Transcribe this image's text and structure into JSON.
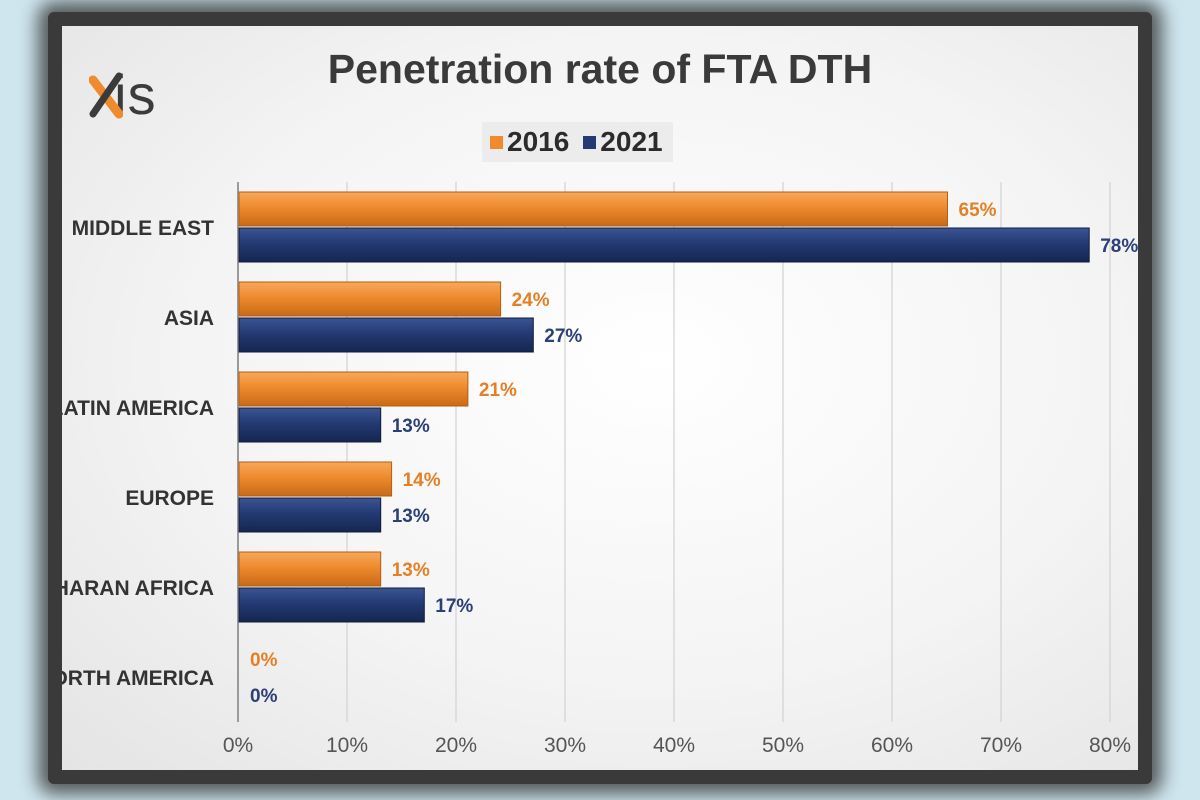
{
  "logo": {
    "text": "axis"
  },
  "chart_data": {
    "type": "bar",
    "orientation": "horizontal",
    "title": "Penetration rate of FTA DTH",
    "categories": [
      "MIDDLE EAST",
      "ASIA",
      "LATIN AMERICA",
      "EUROPE",
      "SUB-SAHARAN AFRICA",
      "NORTH AMERICA"
    ],
    "series": [
      {
        "name": "2016",
        "color": "#ef8a2e",
        "values": [
          65,
          24,
          21,
          14,
          13,
          0
        ],
        "labels": [
          "65%",
          "24%",
          "21%",
          "14%",
          "13%",
          "0%"
        ]
      },
      {
        "name": "2021",
        "color": "#233a73",
        "values": [
          78,
          27,
          13,
          13,
          17,
          0
        ],
        "labels": [
          "78%",
          "27%",
          "13%",
          "13%",
          "17%",
          "0%"
        ]
      }
    ],
    "xlim": [
      0,
      80
    ],
    "ticks": [
      0,
      10,
      20,
      30,
      40,
      50,
      60,
      70,
      80
    ],
    "tick_labels": [
      "0%",
      "10%",
      "20%",
      "30%",
      "40%",
      "50%",
      "60%",
      "70%",
      "80%"
    ],
    "legend_position": "top",
    "grid": true
  }
}
